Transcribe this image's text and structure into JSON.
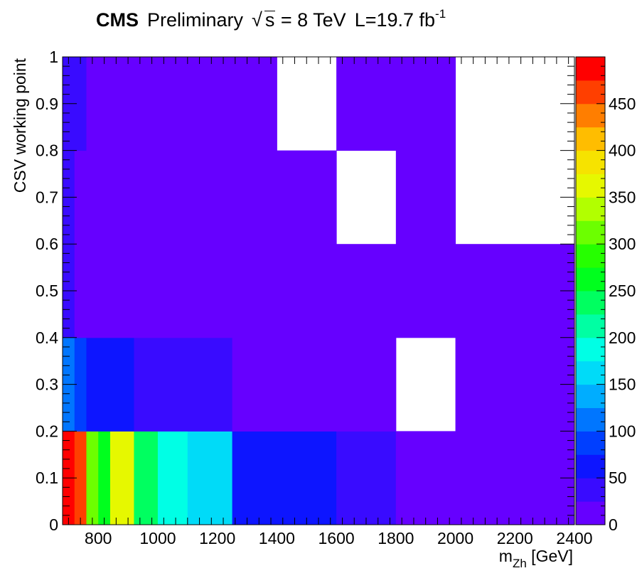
{
  "title": {
    "experiment": "CMS",
    "status": "Preliminary",
    "energy_pre": "√",
    "energy_s": "s",
    "energy_post": " = 8 TeV",
    "lumi": "L=19.7 fb",
    "lumi_exp": "-1"
  },
  "chart_data": {
    "type": "heatmap",
    "title": "",
    "xlabel": "m",
    "xlabel_sub": "Zh",
    "xlabel_unit": " [GeV]",
    "ylabel": "CSV working point",
    "xlim": [
      680,
      2400
    ],
    "ylim": [
      0,
      1
    ],
    "zlim": [
      0,
      500
    ],
    "palette_levels": 20,
    "x_ticks": [
      800,
      1000,
      1200,
      1400,
      1600,
      1800,
      2000,
      2200,
      2400
    ],
    "y_ticks": [
      "0",
      "0.1",
      "0.2",
      "0.3",
      "0.4",
      "0.5",
      "0.6",
      "0.7",
      "0.8",
      "0.9",
      "1"
    ],
    "z_ticks": [
      0,
      50,
      100,
      150,
      200,
      250,
      300,
      350,
      400,
      450
    ],
    "cells": [
      {
        "x": [
          680,
          720
        ],
        "y": [
          0,
          0.2
        ],
        "z": 490
      },
      {
        "x": [
          720,
          760
        ],
        "y": [
          0,
          0.2
        ],
        "z": 460
      },
      {
        "x": [
          760,
          800
        ],
        "y": [
          0,
          0.2
        ],
        "z": 320
      },
      {
        "x": [
          800,
          840
        ],
        "y": [
          0,
          0.2
        ],
        "z": 270
      },
      {
        "x": [
          840,
          920
        ],
        "y": [
          0,
          0.2
        ],
        "z": 360
      },
      {
        "x": [
          920,
          1000
        ],
        "y": [
          0,
          0.2
        ],
        "z": 235
      },
      {
        "x": [
          1000,
          1100
        ],
        "y": [
          0,
          0.2
        ],
        "z": 185
      },
      {
        "x": [
          1100,
          1250
        ],
        "y": [
          0,
          0.2
        ],
        "z": 160
      },
      {
        "x": [
          1250,
          1600
        ],
        "y": [
          0,
          0.2
        ],
        "z": 60
      },
      {
        "x": [
          1600,
          1800
        ],
        "y": [
          0,
          0.2
        ],
        "z": 35
      },
      {
        "x": [
          1800,
          2400
        ],
        "y": [
          0,
          0.2
        ],
        "z": 15
      },
      {
        "x": [
          680,
          720
        ],
        "y": [
          0.2,
          0.4
        ],
        "z": 110
      },
      {
        "x": [
          720,
          760
        ],
        "y": [
          0.2,
          0.4
        ],
        "z": 85
      },
      {
        "x": [
          760,
          920
        ],
        "y": [
          0.2,
          0.4
        ],
        "z": 60
      },
      {
        "x": [
          920,
          1250
        ],
        "y": [
          0.2,
          0.4
        ],
        "z": 35
      },
      {
        "x": [
          1250,
          1800
        ],
        "y": [
          0.2,
          0.4
        ],
        "z": 15
      },
      {
        "x": [
          1800,
          2000
        ],
        "y": [
          0.2,
          0.4
        ],
        "z": null
      },
      {
        "x": [
          2000,
          2400
        ],
        "y": [
          0.2,
          0.4
        ],
        "z": 15
      },
      {
        "x": [
          680,
          720
        ],
        "y": [
          0.4,
          0.6
        ],
        "z": 35
      },
      {
        "x": [
          720,
          2400
        ],
        "y": [
          0.4,
          0.6
        ],
        "z": 15
      },
      {
        "x": [
          680,
          720
        ],
        "y": [
          0.6,
          0.8
        ],
        "z": 35
      },
      {
        "x": [
          720,
          1600
        ],
        "y": [
          0.6,
          0.8
        ],
        "z": 15
      },
      {
        "x": [
          1600,
          1800
        ],
        "y": [
          0.6,
          0.8
        ],
        "z": null
      },
      {
        "x": [
          1800,
          2000
        ],
        "y": [
          0.6,
          0.8
        ],
        "z": 15
      },
      {
        "x": [
          2000,
          2400
        ],
        "y": [
          0.6,
          0.8
        ],
        "z": null
      },
      {
        "x": [
          680,
          760
        ],
        "y": [
          0.8,
          1.0
        ],
        "z": 35
      },
      {
        "x": [
          760,
          1400
        ],
        "y": [
          0.8,
          1.0
        ],
        "z": 15
      },
      {
        "x": [
          1400,
          1600
        ],
        "y": [
          0.8,
          1.0
        ],
        "z": null
      },
      {
        "x": [
          1600,
          2000
        ],
        "y": [
          0.8,
          1.0
        ],
        "z": 15
      },
      {
        "x": [
          2000,
          2400
        ],
        "y": [
          0.8,
          1.0
        ],
        "z": null
      }
    ]
  }
}
